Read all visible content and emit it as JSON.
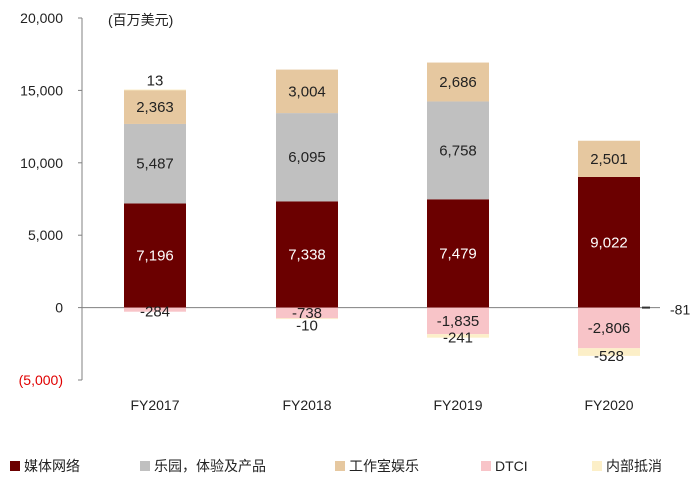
{
  "chart_data": {
    "type": "bar",
    "stacked": true,
    "unit_label": "(百万美元)",
    "categories": [
      "FY2017",
      "FY2018",
      "FY2019",
      "FY2020"
    ],
    "ylim": [
      -5000,
      20000
    ],
    "yticks": [
      {
        "value": 20000,
        "label": "20,000",
        "negative": false
      },
      {
        "value": 15000,
        "label": "15,000",
        "negative": false
      },
      {
        "value": 10000,
        "label": "10,000",
        "negative": false
      },
      {
        "value": 5000,
        "label": "5,000",
        "negative": false
      },
      {
        "value": 0,
        "label": "0",
        "negative": false
      },
      {
        "value": -5000,
        "label": "(5,000)",
        "negative": true
      }
    ],
    "series": [
      {
        "name": "媒体网络",
        "color": "#6b0000",
        "label_color": "#ffffff",
        "values": [
          7196,
          7338,
          7479,
          9022
        ],
        "labels": [
          "7,196",
          "7,338",
          "7,479",
          "9,022"
        ]
      },
      {
        "name": "乐园，体验及产品",
        "color": "#c0c0c0",
        "label_color": "#222222",
        "values": [
          5487,
          6095,
          6758,
          0
        ],
        "labels": [
          "5,487",
          "6,095",
          "6,758",
          ""
        ]
      },
      {
        "name": "工作室娱乐",
        "color": "#e6c8a0",
        "label_color": "#222222",
        "values": [
          2363,
          3004,
          2686,
          2501
        ],
        "labels": [
          "2,363",
          "3,004",
          "2,686",
          "2,501"
        ]
      },
      {
        "name": "DTCI",
        "color": "#f8c4c8",
        "label_color": "#222222",
        "values": [
          -284,
          -738,
          -1835,
          -2806
        ],
        "labels": [
          "-284",
          "-738",
          "-1,835",
          "-2,806"
        ]
      },
      {
        "name": "内部抵消",
        "color": "#fcefc8",
        "label_color": "#222222",
        "values": [
          13,
          -10,
          -241,
          -528
        ],
        "labels": [
          "13",
          "-10",
          "-241",
          "-528"
        ]
      }
    ],
    "extra_label": {
      "category_index": 3,
      "value": -81,
      "label": "-81"
    },
    "xlabel": "",
    "ylabel": "",
    "legend_position": "bottom"
  }
}
